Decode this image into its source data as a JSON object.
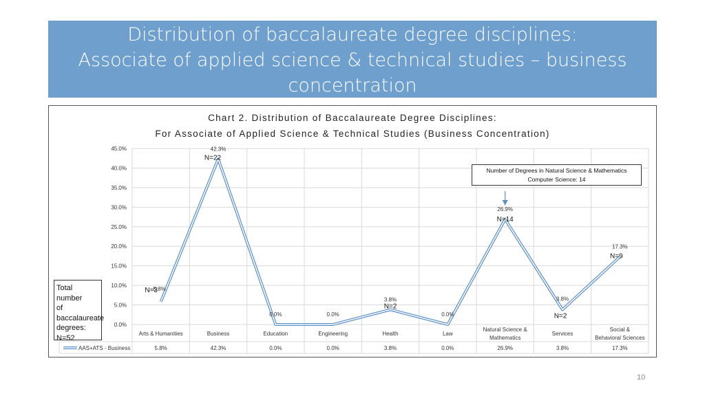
{
  "slide": {
    "title_line1": "Distribution of baccalaureate degree disciplines:",
    "title_line2": "Associate of applied science & technical studies – business",
    "title_line3": "concentration",
    "page_number": "10"
  },
  "side_note": {
    "text_lines": [
      "Total number",
      "of",
      "baccalaureate",
      "degrees:",
      "N=52"
    ]
  },
  "callout": {
    "line1": "Number of Degrees in Natural Science & Mathematics",
    "line2": "Computer Science: 14"
  },
  "chart_data": {
    "type": "line",
    "title": "Chart 2. Distribution of Baccalaureate Degree Disciplines:",
    "subtitle": "For Associate of Applied Science & Technical Studies (Business Concentration)",
    "categories": [
      "Arts & Humanities",
      "Business",
      "Education",
      "Engineering",
      "Health",
      "Law",
      "Natural Science & Mathematics",
      "Services",
      "Social & Behavioral Sciences"
    ],
    "series": [
      {
        "name": "AAS+ATS - Business",
        "values": [
          5.8,
          42.3,
          0.0,
          0.0,
          3.8,
          0.0,
          26.9,
          3.8,
          17.3
        ],
        "labels": [
          "5.8%",
          "42.3%",
          "0.0%",
          "0.0%",
          "3.8%",
          "0.0%",
          "26.9%",
          "3.8%",
          "17.3%"
        ]
      }
    ],
    "counts": [
      "N=3",
      "N=22",
      "",
      "",
      "N=2",
      "",
      "N=14",
      "N=2",
      "N=9"
    ],
    "y_ticks": [
      "0.0%",
      "5.0%",
      "10.0%",
      "15.0%",
      "20.0%",
      "25.0%",
      "30.0%",
      "35.0%",
      "40.0%",
      "45.0%"
    ],
    "ylim": [
      0,
      45
    ],
    "grid": true,
    "legend": "data-table-bottom",
    "line_color": "#6f9fcd"
  }
}
